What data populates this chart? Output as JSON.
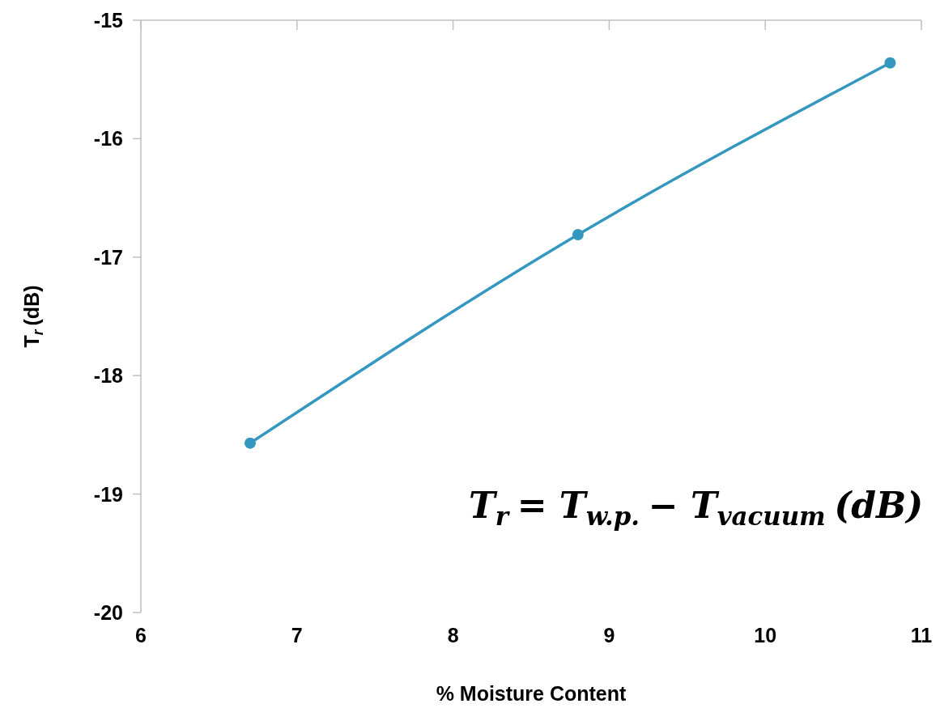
{
  "chart_data": {
    "type": "line",
    "xlabel": "% Moisture Content",
    "ylabel": "T$_{r}$ (dB)",
    "x": [
      6.7,
      8.8,
      10.8
    ],
    "series": [
      {
        "color": "#3497bf",
        "values": [
          -18.57,
          -16.81,
          -15.36
        ]
      }
    ],
    "xlim": [
      6,
      11
    ],
    "xticks": [
      6,
      7,
      8,
      9,
      10,
      11
    ],
    "ylim": [
      -20,
      -15
    ],
    "yticks": [
      -20,
      -19,
      -18,
      -17,
      -16,
      -15
    ],
    "grid": false,
    "marker": "circle",
    "line_style": "solid",
    "annotations": [
      "T$_{r}$ = T$_{w.p.}$− T$_{vacuum}$(dB)"
    ]
  }
}
